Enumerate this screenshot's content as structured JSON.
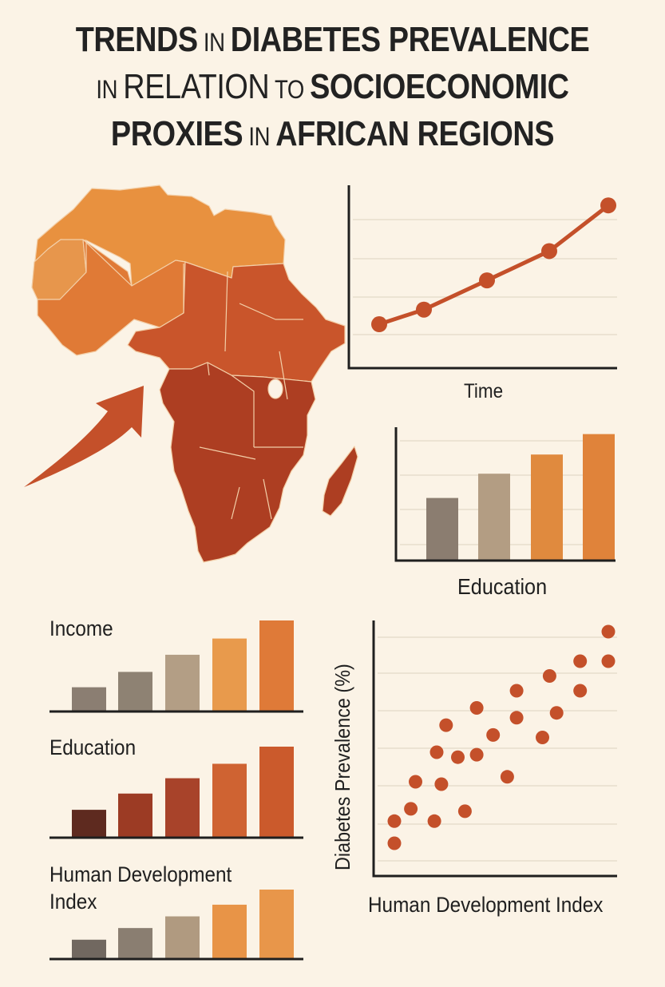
{
  "title": {
    "line1": [
      {
        "t": "TRENDS",
        "w": "b"
      },
      {
        "t": " IN ",
        "w": "s"
      },
      {
        "t": "DIABETES PREVALENCE",
        "w": "b"
      }
    ],
    "line2": [
      {
        "t": "IN ",
        "w": "s"
      },
      {
        "t": "RELATION",
        "w": "t"
      },
      {
        "t": " TO ",
        "w": "s"
      },
      {
        "t": "SOCIOECONOMIC",
        "w": "b"
      }
    ],
    "line3": [
      {
        "t": "PROXIES",
        "w": "b"
      },
      {
        "t": " IN ",
        "w": "s"
      },
      {
        "t": "AFRICAN REGIONS",
        "w": "b"
      }
    ],
    "full": "TRENDS IN DIABETES PREVALENCE IN RELATION TO SOCIOECONOMIC PROXIES IN AFRICAN REGIONS"
  },
  "colors": {
    "background": "#fbf3e6",
    "accent": "#c4502a",
    "grid": "#ece3d3",
    "axis": "#1f1f1f",
    "map_north": "#e8913f",
    "map_west": "#e07a36",
    "map_central": "#c9552b",
    "map_south": "#ad3e22"
  },
  "map": {
    "label": "Map of Africa shaded by region",
    "arrow": "curved arrow pointing to Gulf of Guinea"
  },
  "chart_data": [
    {
      "id": "time-line",
      "type": "line",
      "title": "",
      "xlabel": "Time",
      "ylabel": "",
      "x": [
        1,
        2,
        3,
        4,
        5
      ],
      "values": [
        24,
        32,
        48,
        64,
        89
      ],
      "ylim": [
        0,
        100
      ],
      "grid": true,
      "color": "#c4502a"
    },
    {
      "id": "education-top-right",
      "type": "bar",
      "xlabel": "Education",
      "categories": [
        "1",
        "2",
        "3",
        "4"
      ],
      "values": [
        49,
        68,
        83,
        99
      ],
      "ylim": [
        0,
        100
      ],
      "grid": true,
      "colors": [
        "#8b7d70",
        "#b39d83",
        "#e08a3e",
        "#e0833a"
      ]
    },
    {
      "id": "income",
      "type": "bar",
      "title": "Income",
      "categories": [
        "1",
        "2",
        "3",
        "4",
        "5"
      ],
      "values": [
        26,
        43,
        62,
        80,
        100
      ],
      "colors": [
        "#8b7e72",
        "#8e8273",
        "#b39e85",
        "#e89a4c",
        "#df7a38"
      ]
    },
    {
      "id": "education-left",
      "type": "bar",
      "title": "Education",
      "categories": [
        "1",
        "2",
        "3",
        "4",
        "5"
      ],
      "values": [
        30,
        48,
        65,
        81,
        100
      ],
      "colors": [
        "#5e2a1f",
        "#9c3b24",
        "#a8432a",
        "#cf6332",
        "#cb5a2c"
      ]
    },
    {
      "id": "hdi-left",
      "type": "bar",
      "title": "Human Development Index",
      "title_lines": [
        "Human Development",
        "Index"
      ],
      "categories": [
        "1",
        "2",
        "3",
        "4",
        "5"
      ],
      "values": [
        27,
        44,
        61,
        78,
        100
      ],
      "colors": [
        "#716860",
        "#8a7e71",
        "#b09a80",
        "#e89447",
        "#e8964a"
      ]
    },
    {
      "id": "hdi-scatter",
      "type": "scatter",
      "xlabel": "Human Development Index",
      "ylabel": "Diabetes Prevalence (%)",
      "xlim": [
        0,
        100
      ],
      "ylim": [
        0,
        100
      ],
      "grid": true,
      "color": "#c4502a",
      "points": [
        [
          8,
          21
        ],
        [
          8,
          12
        ],
        [
          15,
          26
        ],
        [
          17,
          37
        ],
        [
          25,
          21
        ],
        [
          26,
          49
        ],
        [
          28,
          36
        ],
        [
          30,
          60
        ],
        [
          35,
          47
        ],
        [
          38,
          25
        ],
        [
          43,
          67
        ],
        [
          43,
          48
        ],
        [
          50,
          56
        ],
        [
          56,
          39
        ],
        [
          60,
          63
        ],
        [
          60,
          74
        ],
        [
          71,
          55
        ],
        [
          74,
          80
        ],
        [
          77,
          65
        ],
        [
          87,
          74
        ],
        [
          87,
          86
        ],
        [
          99,
          86
        ],
        [
          99,
          98
        ]
      ]
    }
  ]
}
